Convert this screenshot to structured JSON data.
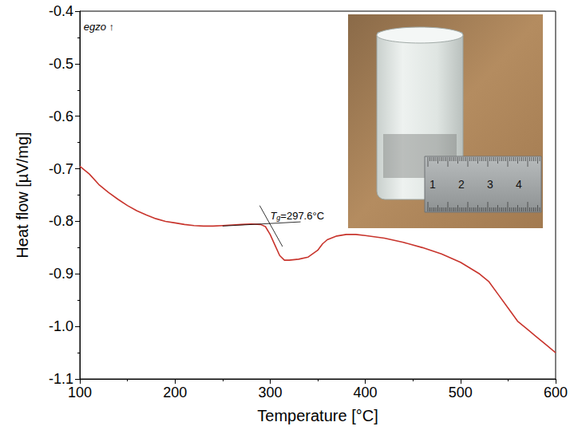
{
  "chart_data": {
    "type": "line",
    "x_label": "Temperature [°C]",
    "y_label": "Heat flow [µV/mg]",
    "color": "#c8342c",
    "grid": false,
    "xlim": [
      100,
      600
    ],
    "xticks": [
      100,
      200,
      300,
      400,
      500,
      600
    ],
    "ylim": [
      -1.1,
      -0.4
    ],
    "yticks": [
      -1.1,
      {
        "value": -1.0,
        "label": "-1.0"
      },
      -0.9,
      -0.8,
      -0.7,
      -0.6,
      -0.5,
      -0.4
    ],
    "x": [
      100,
      110,
      120,
      130,
      140,
      150,
      160,
      170,
      180,
      190,
      200,
      210,
      220,
      230,
      240,
      250,
      260,
      270,
      280,
      290,
      295,
      300,
      305,
      310,
      315,
      320,
      330,
      340,
      350,
      355,
      360,
      370,
      380,
      390,
      400,
      420,
      440,
      460,
      480,
      500,
      520,
      530,
      540,
      550,
      560,
      570,
      580,
      590,
      600
    ],
    "values": [
      -0.695,
      -0.71,
      -0.73,
      -0.745,
      -0.758,
      -0.77,
      -0.78,
      -0.788,
      -0.795,
      -0.8,
      -0.803,
      -0.806,
      -0.808,
      -0.809,
      -0.809,
      -0.808,
      -0.807,
      -0.806,
      -0.805,
      -0.806,
      -0.81,
      -0.825,
      -0.845,
      -0.865,
      -0.874,
      -0.874,
      -0.872,
      -0.868,
      -0.855,
      -0.843,
      -0.835,
      -0.828,
      -0.825,
      -0.825,
      -0.827,
      -0.832,
      -0.84,
      -0.85,
      -0.862,
      -0.878,
      -0.9,
      -0.915,
      -0.94,
      -0.965,
      -0.99,
      -1.005,
      -1.02,
      -1.035,
      -1.05
    ],
    "tangent_lines": [
      {
        "x": [
          289,
          313
        ],
        "y": [
          -0.77,
          -0.848
        ]
      },
      {
        "x": [
          250,
          332
        ],
        "y": [
          -0.809,
          -0.801
        ]
      }
    ],
    "annotations": [
      {
        "text": "egzo ↑",
        "x": 104,
        "y": -0.42
      },
      {
        "text": "Tg=297.6°C",
        "x": 300,
        "y": -0.789
      }
    ],
    "inset": {
      "ruler_labels": [
        "1",
        "2",
        "3",
        "4"
      ]
    }
  }
}
